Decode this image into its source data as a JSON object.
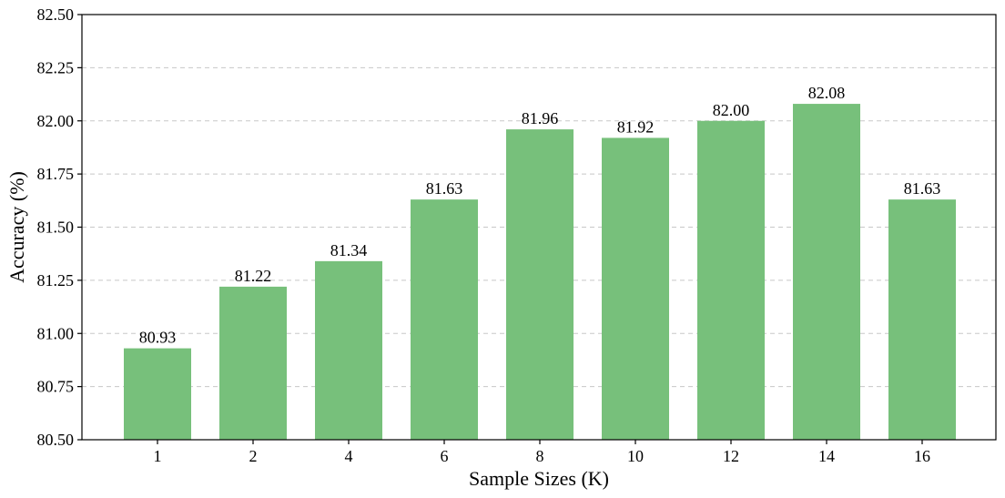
{
  "chart_data": {
    "type": "bar",
    "categories": [
      "1",
      "2",
      "4",
      "6",
      "8",
      "10",
      "12",
      "14",
      "16"
    ],
    "values": [
      80.93,
      81.22,
      81.34,
      81.63,
      81.96,
      81.92,
      82.0,
      82.08,
      81.63
    ],
    "value_labels": [
      "80.93",
      "81.22",
      "81.34",
      "81.63",
      "81.96",
      "81.92",
      "82.00",
      "82.08",
      "81.63"
    ],
    "title": "",
    "xlabel": "Sample Sizes (K)",
    "ylabel": "Accuracy (%)",
    "ylim": [
      80.5,
      82.5
    ],
    "yticks": [
      "80.50",
      "80.75",
      "81.00",
      "81.25",
      "81.50",
      "81.75",
      "82.00",
      "82.25",
      "82.50"
    ],
    "grid": "y-dashed",
    "bar_color": "#77c07b"
  }
}
